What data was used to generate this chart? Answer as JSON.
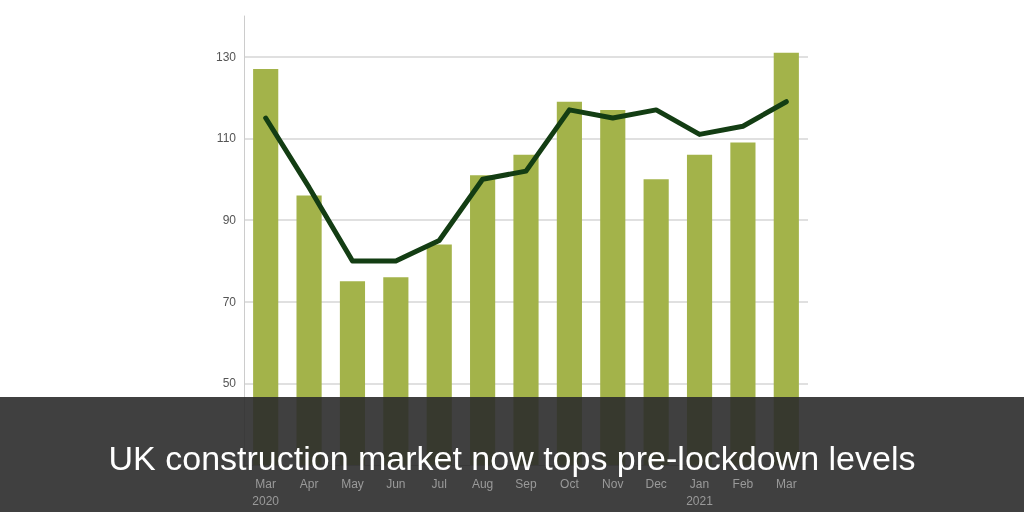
{
  "chart_data": {
    "type": "bar",
    "title": "UK construction market now tops pre-lockdown levels",
    "categories": [
      "Mar 2020",
      "Apr",
      "May",
      "Jun",
      "Jul",
      "Aug",
      "Sep",
      "Oct",
      "Nov",
      "Dec",
      "Jan 2021",
      "Feb",
      "Mar"
    ],
    "series": [
      {
        "type": "bar",
        "color": "#a3b34a",
        "values": [
          127,
          96,
          75,
          76,
          84,
          101,
          106,
          119,
          117,
          100,
          106,
          109,
          131
        ]
      },
      {
        "type": "line",
        "color": "#133d13",
        "values": [
          115,
          98,
          80,
          80,
          85,
          100,
          102,
          117,
          115,
          117,
          111,
          113,
          119
        ]
      }
    ],
    "ylim": [
      30,
      140
    ],
    "yticks": [
      50,
      70,
      90,
      110,
      130
    ],
    "grid": "y",
    "marker": "none",
    "line_style": "solid"
  }
}
